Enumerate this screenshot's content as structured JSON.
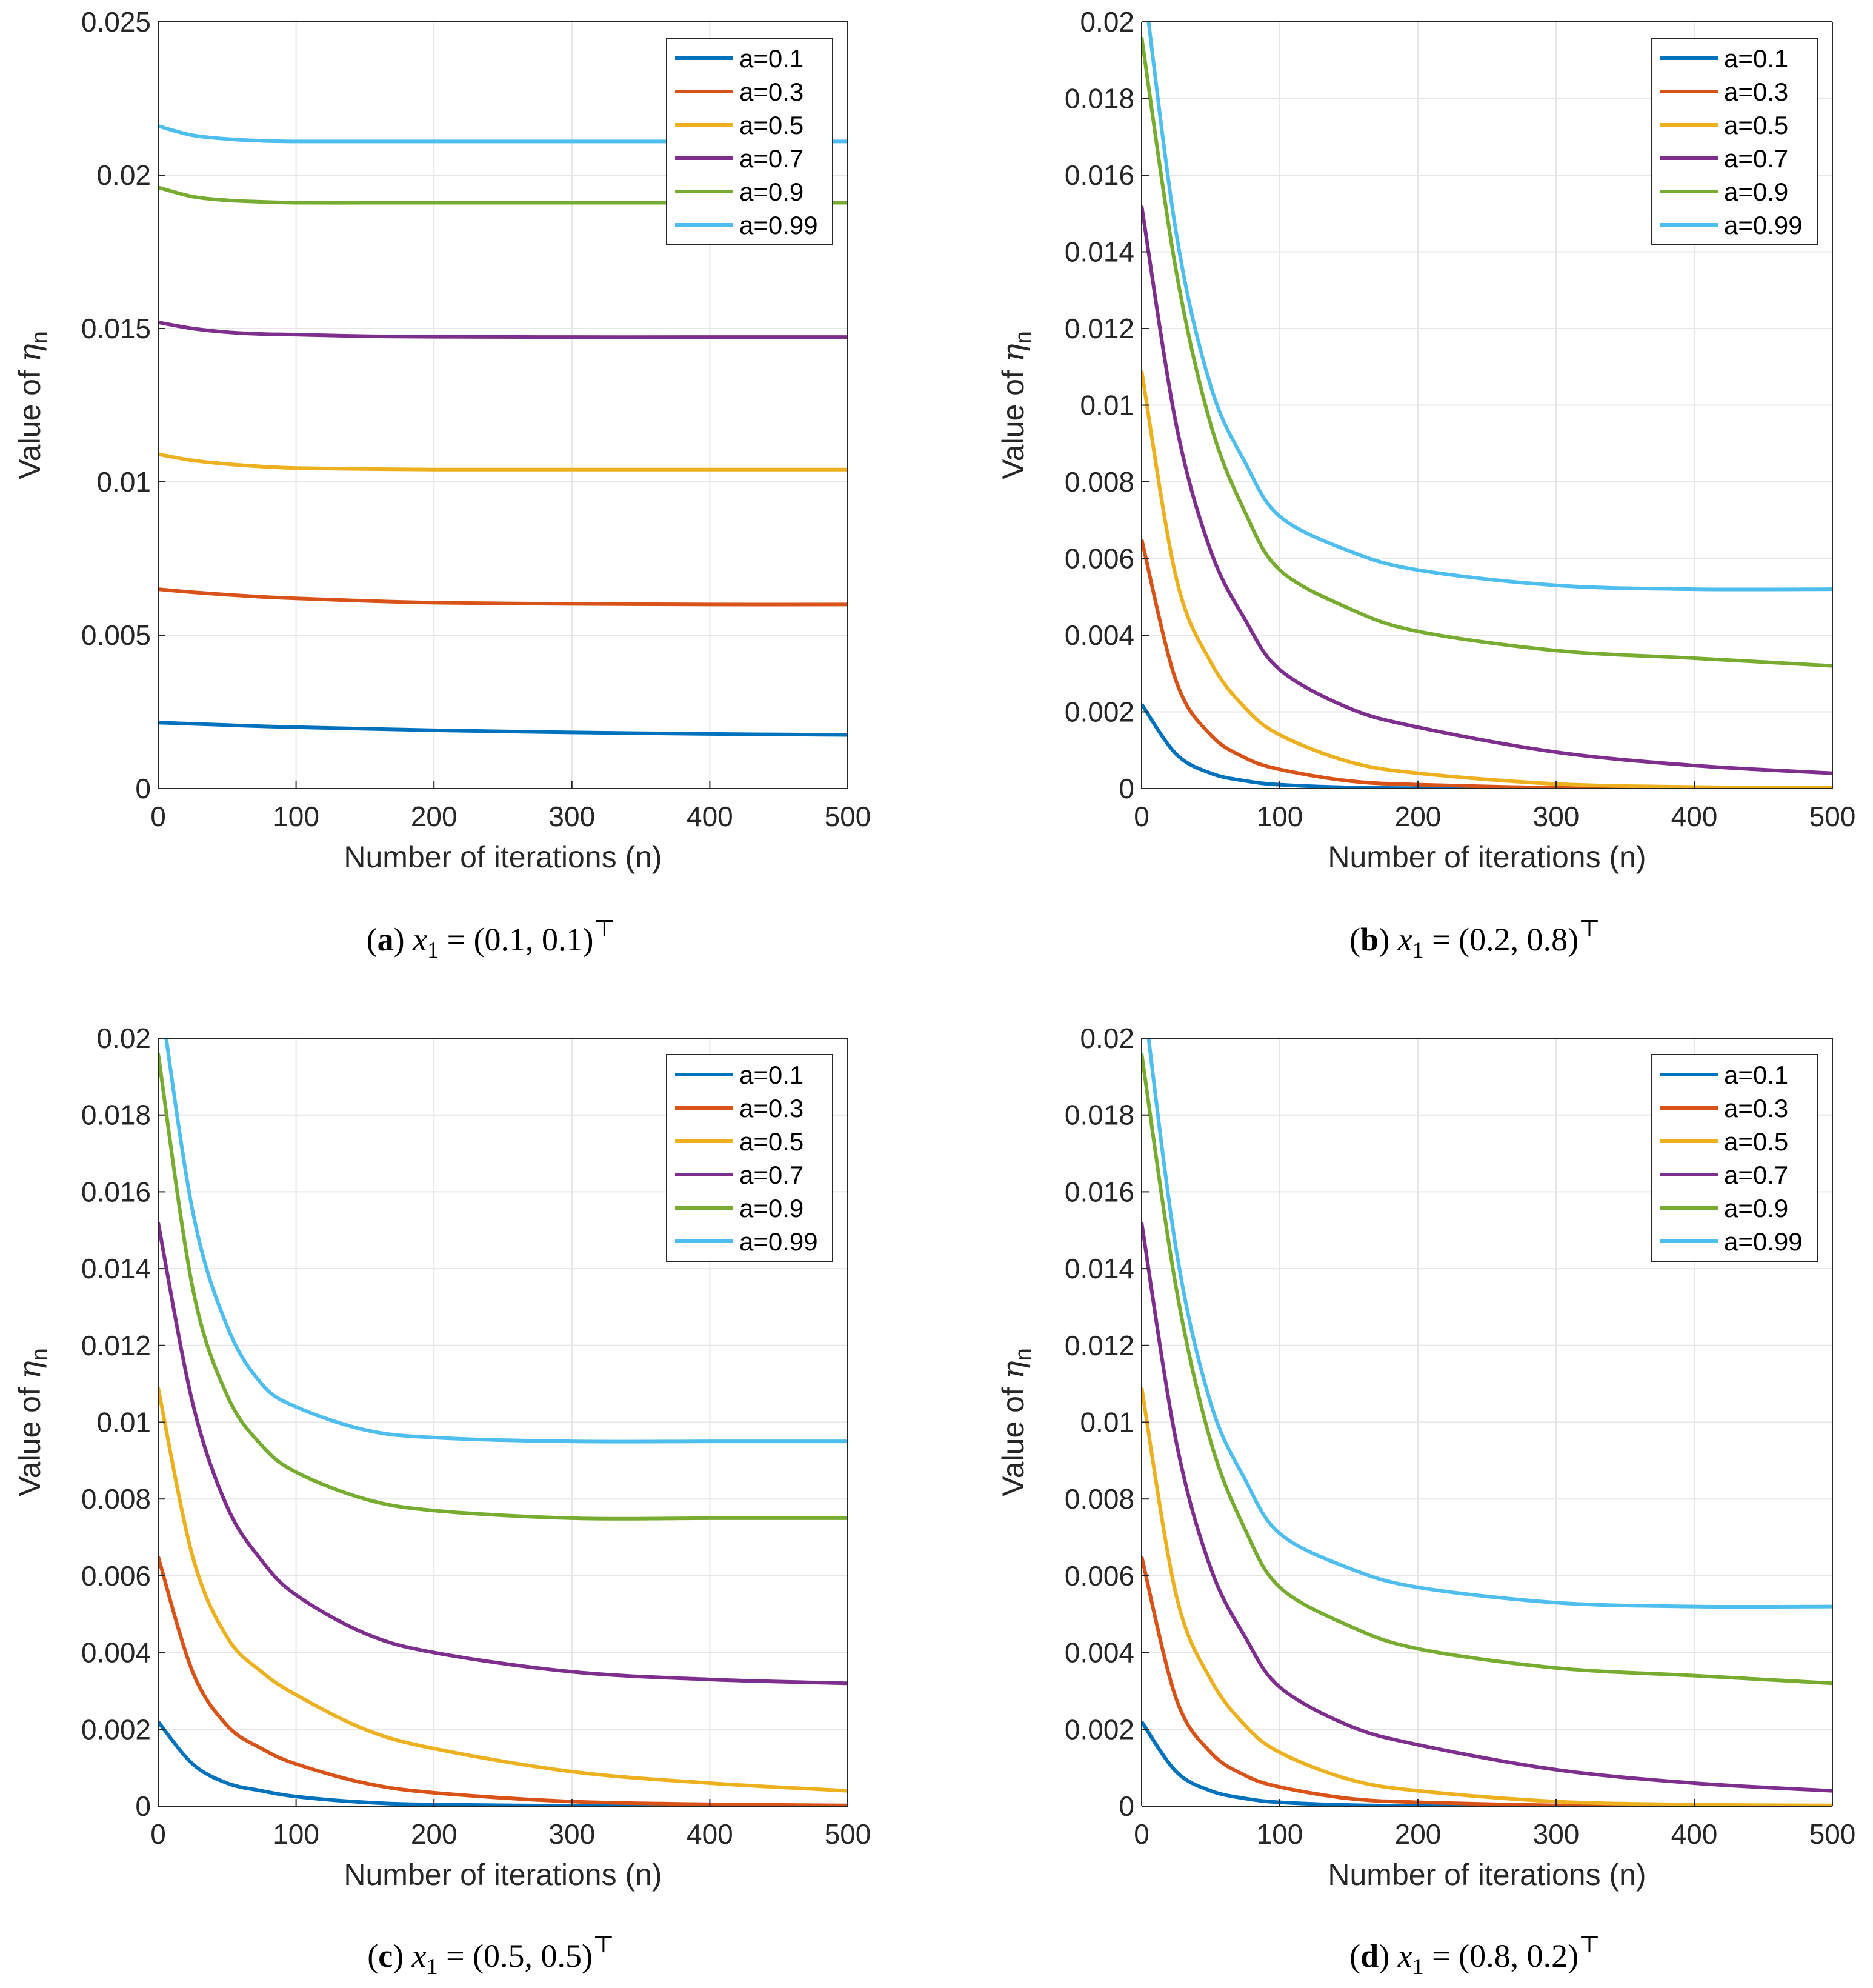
{
  "chart_data": [
    {
      "type": "line",
      "panel": "a",
      "caption": {
        "label": "a",
        "var": "x",
        "sub": "1",
        "value": " = (0.1, 0.1)",
        "sup": "⊤"
      },
      "xlabel": "Number of iterations (n)",
      "ylabel": {
        "text": "Value of ",
        "symbol": "η",
        "sub": "n"
      },
      "xlim": [
        0,
        500
      ],
      "ylim": [
        0,
        0.025
      ],
      "xticks": [
        0,
        100,
        200,
        300,
        400,
        500
      ],
      "xtick_labels": [
        "0",
        "100",
        "200",
        "300",
        "400",
        "500"
      ],
      "yticks": [
        0,
        0.005,
        0.01,
        0.015,
        0.02,
        0.025
      ],
      "ytick_labels": [
        "0",
        "0.005",
        "0.01",
        "0.015",
        "0.02",
        "0.025"
      ],
      "grid": true,
      "legend_position": "top-right",
      "x": [
        0,
        25,
        50,
        75,
        100,
        150,
        200,
        300,
        400,
        500
      ],
      "series": [
        {
          "name": "a=0.1",
          "color": "#0072BD",
          "values": [
            0.00215,
            0.00211,
            0.00207,
            0.00203,
            0.002,
            0.00195,
            0.0019,
            0.00183,
            0.00178,
            0.00175
          ]
        },
        {
          "name": "a=0.3",
          "color": "#D95319",
          "values": [
            0.0065,
            0.0064,
            0.00632,
            0.00625,
            0.0062,
            0.00612,
            0.00606,
            0.00602,
            0.006,
            0.006
          ]
        },
        {
          "name": "a=0.5",
          "color": "#EDB120",
          "values": [
            0.0109,
            0.0107,
            0.01058,
            0.0105,
            0.01045,
            0.01042,
            0.0104,
            0.0104,
            0.0104,
            0.0104
          ]
        },
        {
          "name": "a=0.7",
          "color": "#7E2F8E",
          "values": [
            0.0152,
            0.015,
            0.01488,
            0.01482,
            0.0148,
            0.01475,
            0.01473,
            0.01472,
            0.01472,
            0.01472
          ]
        },
        {
          "name": "a=0.9",
          "color": "#77AC30",
          "values": [
            0.0196,
            0.0193,
            0.01918,
            0.01913,
            0.0191,
            0.0191,
            0.0191,
            0.0191,
            0.0191,
            0.0191
          ]
        },
        {
          "name": "a=0.99",
          "color": "#4DBEEE",
          "values": [
            0.0216,
            0.0213,
            0.02118,
            0.02112,
            0.0211,
            0.0211,
            0.0211,
            0.0211,
            0.0211,
            0.0211
          ]
        }
      ]
    },
    {
      "type": "line",
      "panel": "b",
      "caption": {
        "label": "b",
        "var": "x",
        "sub": "1",
        "value": " = (0.2, 0.8)",
        "sup": "⊤"
      },
      "xlabel": "Number of iterations (n)",
      "ylabel": {
        "text": "Value of ",
        "symbol": "η",
        "sub": "n"
      },
      "xlim": [
        0,
        500
      ],
      "ylim": [
        0,
        0.02
      ],
      "xticks": [
        0,
        100,
        200,
        300,
        400,
        500
      ],
      "xtick_labels": [
        "0",
        "100",
        "200",
        "300",
        "400",
        "500"
      ],
      "yticks": [
        0,
        0.002,
        0.004,
        0.006,
        0.008,
        0.01,
        0.012,
        0.014,
        0.016,
        0.018,
        0.02
      ],
      "ytick_labels": [
        "0",
        "0.002",
        "0.004",
        "0.006",
        "0.008",
        "0.01",
        "0.012",
        "0.014",
        "0.016",
        "0.018",
        "0.02"
      ],
      "grid": true,
      "legend_position": "top-right",
      "x": [
        0,
        25,
        50,
        75,
        100,
        150,
        200,
        300,
        400,
        500
      ],
      "series": [
        {
          "name": "a=0.1",
          "color": "#0072BD",
          "values": [
            0.0022,
            0.0009,
            0.0004,
            0.0002,
            0.0001,
            3e-05,
            1e-05,
            0,
            0,
            0
          ]
        },
        {
          "name": "a=0.3",
          "color": "#D95319",
          "values": [
            0.0065,
            0.0028,
            0.0014,
            0.0008,
            0.0005,
            0.0002,
            0.0001,
            2e-05,
            0,
            0
          ]
        },
        {
          "name": "a=0.5",
          "color": "#EDB120",
          "values": [
            0.0109,
            0.0055,
            0.0033,
            0.0021,
            0.0014,
            0.0007,
            0.0004,
            0.00012,
            4e-05,
            2e-05
          ]
        },
        {
          "name": "a=0.7",
          "color": "#7E2F8E",
          "values": [
            0.0152,
            0.0095,
            0.0062,
            0.0044,
            0.0031,
            0.0021,
            0.0016,
            0.00095,
            0.0006,
            0.0004
          ]
        },
        {
          "name": "a=0.9",
          "color": "#77AC30",
          "values": [
            0.0196,
            0.0135,
            0.0095,
            0.0072,
            0.0057,
            0.0047,
            0.0041,
            0.0036,
            0.0034,
            0.0032
          ]
        },
        {
          "name": "a=0.99",
          "color": "#4DBEEE",
          "values": [
            0.0215,
            0.0145,
            0.0105,
            0.0085,
            0.0071,
            0.0062,
            0.0057,
            0.0053,
            0.0052,
            0.0052
          ]
        }
      ]
    },
    {
      "type": "line",
      "panel": "c",
      "caption": {
        "label": "c",
        "var": "x",
        "sub": "1",
        "value": " = (0.5, 0.5)",
        "sup": "⊤"
      },
      "xlabel": "Number of iterations (n)",
      "ylabel": {
        "text": "Value of ",
        "symbol": "η",
        "sub": "n"
      },
      "xlim": [
        0,
        500
      ],
      "ylim": [
        0,
        0.02
      ],
      "xticks": [
        0,
        100,
        200,
        300,
        400,
        500
      ],
      "xtick_labels": [
        "0",
        "100",
        "200",
        "300",
        "400",
        "500"
      ],
      "yticks": [
        0,
        0.002,
        0.004,
        0.006,
        0.008,
        0.01,
        0.012,
        0.014,
        0.016,
        0.018,
        0.02
      ],
      "ytick_labels": [
        "0",
        "0.002",
        "0.004",
        "0.006",
        "0.008",
        "0.01",
        "0.012",
        "0.014",
        "0.016",
        "0.018",
        "0.02"
      ],
      "grid": true,
      "legend_position": "top-right",
      "x": [
        0,
        25,
        50,
        75,
        100,
        150,
        200,
        300,
        400,
        500
      ],
      "series": [
        {
          "name": "a=0.1",
          "color": "#0072BD",
          "values": [
            0.0022,
            0.0011,
            0.0006,
            0.0004,
            0.00025,
            0.0001,
            4e-05,
            1e-05,
            0,
            0
          ]
        },
        {
          "name": "a=0.3",
          "color": "#D95319",
          "values": [
            0.0065,
            0.0035,
            0.0021,
            0.0015,
            0.0011,
            0.0006,
            0.00035,
            0.00012,
            5e-05,
            2e-05
          ]
        },
        {
          "name": "a=0.5",
          "color": "#EDB120",
          "values": [
            0.0109,
            0.0065,
            0.0044,
            0.0035,
            0.0029,
            0.002,
            0.0015,
            0.0009,
            0.0006,
            0.0004
          ]
        },
        {
          "name": "a=0.7",
          "color": "#7E2F8E",
          "values": [
            0.0152,
            0.0105,
            0.0078,
            0.0064,
            0.0055,
            0.0045,
            0.004,
            0.0035,
            0.0033,
            0.0032
          ]
        },
        {
          "name": "a=0.9",
          "color": "#77AC30",
          "values": [
            0.0196,
            0.0135,
            0.0107,
            0.0094,
            0.0087,
            0.008,
            0.0077,
            0.0075,
            0.0075,
            0.0075
          ]
        },
        {
          "name": "a=0.99",
          "color": "#4DBEEE",
          "values": [
            0.0215,
            0.0155,
            0.0125,
            0.011,
            0.0104,
            0.0098,
            0.0096,
            0.0095,
            0.0095,
            0.0095
          ]
        }
      ]
    },
    {
      "type": "line",
      "panel": "d",
      "caption": {
        "label": "d",
        "var": "x",
        "sub": "1",
        "value": " = (0.8, 0.2)",
        "sup": "⊤"
      },
      "xlabel": "Number of iterations (n)",
      "ylabel": {
        "text": "Value of ",
        "symbol": "η",
        "sub": "n"
      },
      "xlim": [
        0,
        500
      ],
      "ylim": [
        0,
        0.02
      ],
      "xticks": [
        0,
        100,
        200,
        300,
        400,
        500
      ],
      "xtick_labels": [
        "0",
        "100",
        "200",
        "300",
        "400",
        "500"
      ],
      "yticks": [
        0,
        0.002,
        0.004,
        0.006,
        0.008,
        0.01,
        0.012,
        0.014,
        0.016,
        0.018,
        0.02
      ],
      "ytick_labels": [
        "0",
        "0.002",
        "0.004",
        "0.006",
        "0.008",
        "0.01",
        "0.012",
        "0.014",
        "0.016",
        "0.018",
        "0.02"
      ],
      "grid": true,
      "legend_position": "top-right",
      "x": [
        0,
        25,
        50,
        75,
        100,
        150,
        200,
        300,
        400,
        500
      ],
      "series": [
        {
          "name": "a=0.1",
          "color": "#0072BD",
          "values": [
            0.0022,
            0.0009,
            0.0004,
            0.0002,
            0.0001,
            3e-05,
            1e-05,
            0,
            0,
            0
          ]
        },
        {
          "name": "a=0.3",
          "color": "#D95319",
          "values": [
            0.0065,
            0.0028,
            0.0014,
            0.0008,
            0.0005,
            0.0002,
            0.0001,
            2e-05,
            0,
            0
          ]
        },
        {
          "name": "a=0.5",
          "color": "#EDB120",
          "values": [
            0.0109,
            0.0055,
            0.0033,
            0.0021,
            0.0014,
            0.0007,
            0.0004,
            0.00012,
            4e-05,
            2e-05
          ]
        },
        {
          "name": "a=0.7",
          "color": "#7E2F8E",
          "values": [
            0.0152,
            0.0095,
            0.0062,
            0.0044,
            0.0031,
            0.0021,
            0.0016,
            0.00095,
            0.0006,
            0.0004
          ]
        },
        {
          "name": "a=0.9",
          "color": "#77AC30",
          "values": [
            0.0196,
            0.0135,
            0.0095,
            0.0072,
            0.0057,
            0.0047,
            0.0041,
            0.0036,
            0.0034,
            0.0032
          ]
        },
        {
          "name": "a=0.99",
          "color": "#4DBEEE",
          "values": [
            0.0215,
            0.0145,
            0.0105,
            0.0085,
            0.0071,
            0.0062,
            0.0057,
            0.0053,
            0.0052,
            0.0052
          ]
        }
      ]
    }
  ]
}
